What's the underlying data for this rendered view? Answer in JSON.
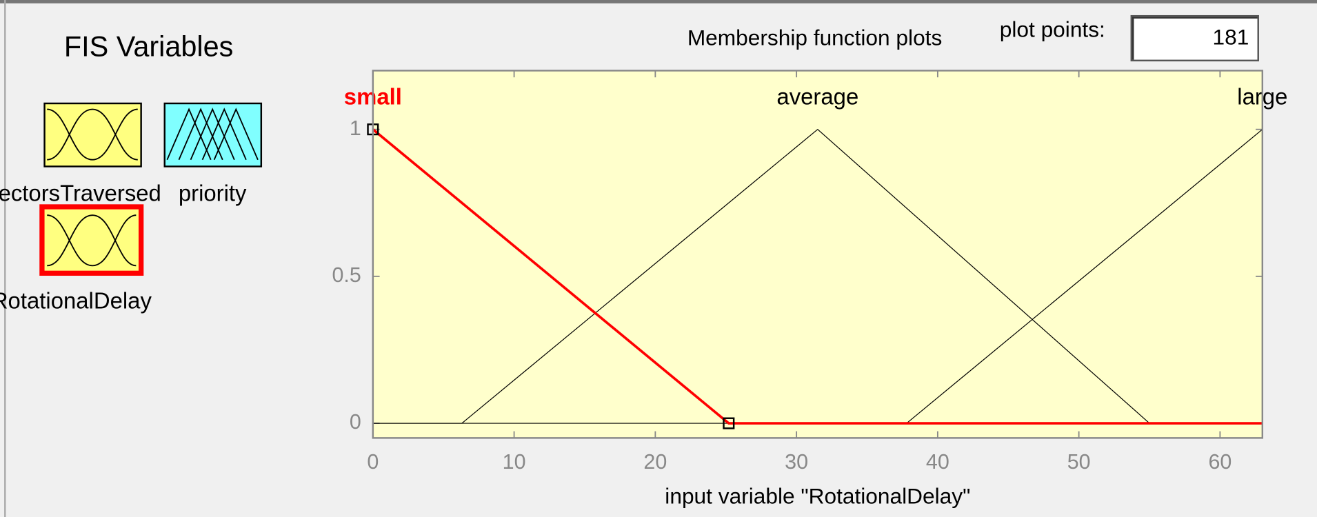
{
  "panel": {
    "title": "FIS Variables",
    "variables": [
      "SectorsTraversed",
      "priority",
      "RotationalDelay"
    ]
  },
  "header": {
    "title": "Membership function plots",
    "plot_points_label": "plot points:",
    "plot_points": 181
  },
  "chart_data": {
    "type": "line",
    "xlabel": "input variable \"RotationalDelay\"",
    "xlim": [
      0,
      63
    ],
    "ylim": [
      -0.05,
      1.2
    ],
    "xticks": [
      0,
      10,
      20,
      30,
      40,
      50,
      60
    ],
    "yticks": [
      0,
      0.5,
      1
    ],
    "series": [
      {
        "name": "small",
        "color": "#ff0000",
        "linewidth": 3,
        "x": [
          0,
          25.2,
          63
        ],
        "values": [
          1,
          0,
          0
        ]
      },
      {
        "name": "average",
        "color": "#000000",
        "linewidth": 1,
        "x": [
          0,
          6.3,
          31.5,
          55,
          63
        ],
        "values": [
          0,
          0,
          1,
          0,
          0
        ]
      },
      {
        "name": "large",
        "color": "#000000",
        "linewidth": 1,
        "x": [
          0,
          37.8,
          63
        ],
        "values": [
          0,
          0,
          1
        ]
      }
    ]
  }
}
